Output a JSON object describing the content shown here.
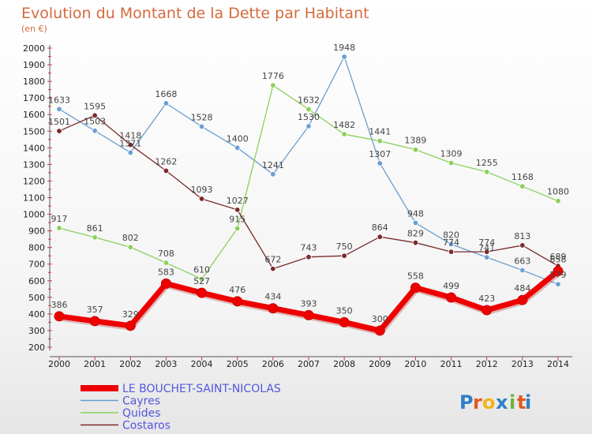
{
  "chart_data": {
    "type": "line",
    "title": "Evolution du Montant de la Dette par Habitant",
    "subtitle": "(en €)",
    "xlabel": "",
    "ylabel": "",
    "ylim": [
      200,
      2000
    ],
    "yticks": [
      200,
      300,
      400,
      500,
      600,
      700,
      800,
      900,
      1000,
      1100,
      1200,
      1300,
      1400,
      1500,
      1600,
      1700,
      1800,
      1900,
      2000
    ],
    "x": [
      "2000",
      "2001",
      "2002",
      "2003",
      "2004",
      "2005",
      "2006",
      "2007",
      "2008",
      "2009",
      "2010",
      "2011",
      "2012",
      "2013",
      "2014"
    ],
    "grid": false,
    "legend_position": "bottom-left",
    "series": [
      {
        "name": "LE BOUCHET-SAINT-NICOLAS",
        "color": "#ee0000",
        "values": [
          386,
          357,
          329,
          583,
          527,
          476,
          434,
          393,
          350,
          300,
          558,
          499,
          423,
          484,
          658
        ]
      },
      {
        "name": "Cayres",
        "color": "#6a9fd2",
        "values": [
          1633,
          1503,
          1371,
          1668,
          1528,
          1400,
          1241,
          1530,
          1948,
          1307,
          948,
          820,
          741,
          663,
          579
        ]
      },
      {
        "name": "Quides",
        "color": "#8ccf5a",
        "values": [
          917,
          861,
          802,
          708,
          610,
          915,
          1776,
          1632,
          1482,
          1441,
          1389,
          1309,
          1255,
          1168,
          1080
        ]
      },
      {
        "name": "Costaros",
        "color": "#7a2a2a",
        "values": [
          1501,
          1595,
          1418,
          1262,
          1093,
          1027,
          672,
          743,
          750,
          864,
          829,
          774,
          774,
          813,
          689
        ]
      }
    ]
  },
  "logo": {
    "text": "Proxiti"
  }
}
